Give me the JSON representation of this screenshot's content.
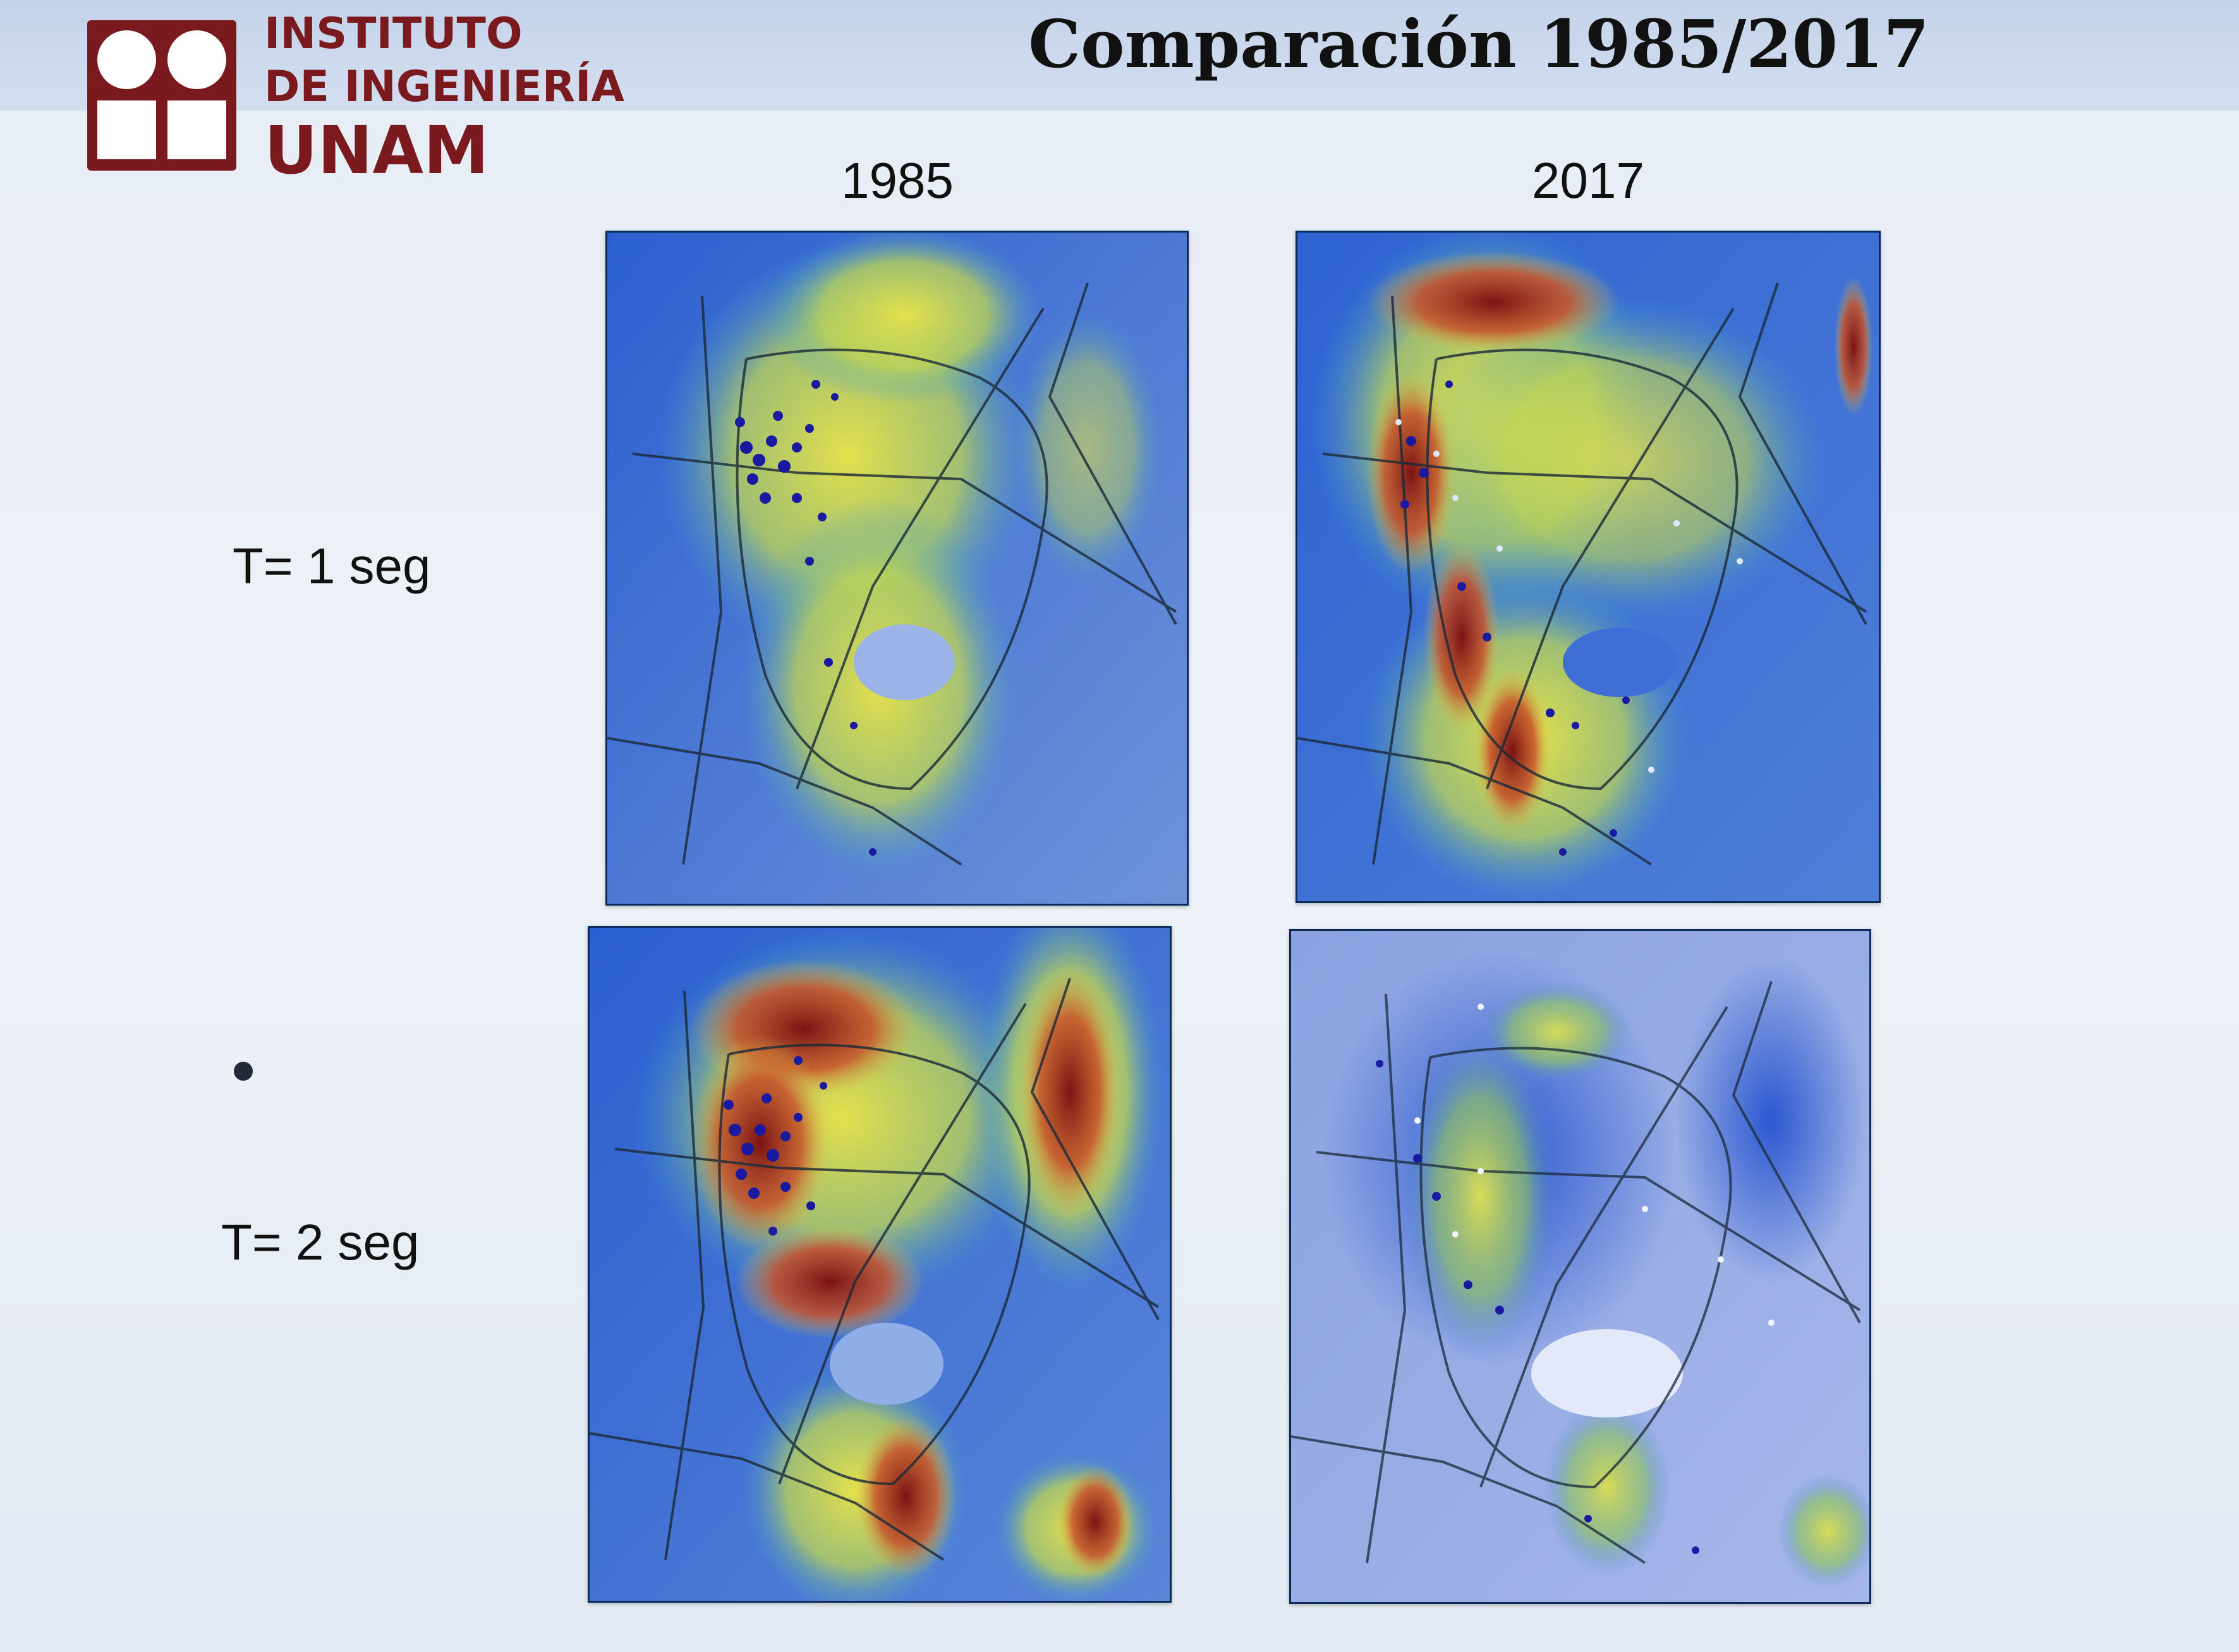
{
  "logo": {
    "line1": "INSTITUTO",
    "line2": "DE INGENIERÍA",
    "line3": "UNAM",
    "color": "#7a1a1f"
  },
  "title": "Comparación 1985/2017",
  "columns": [
    "1985",
    "2017"
  ],
  "rows": [
    "T= 1 seg",
    "T= 2 seg"
  ],
  "colors": {
    "low": "#2a55c8",
    "mid": "#d8d84a",
    "high": "#8a1a1a",
    "roads": "#1a2a3a",
    "points": "#1a1aa0"
  }
}
